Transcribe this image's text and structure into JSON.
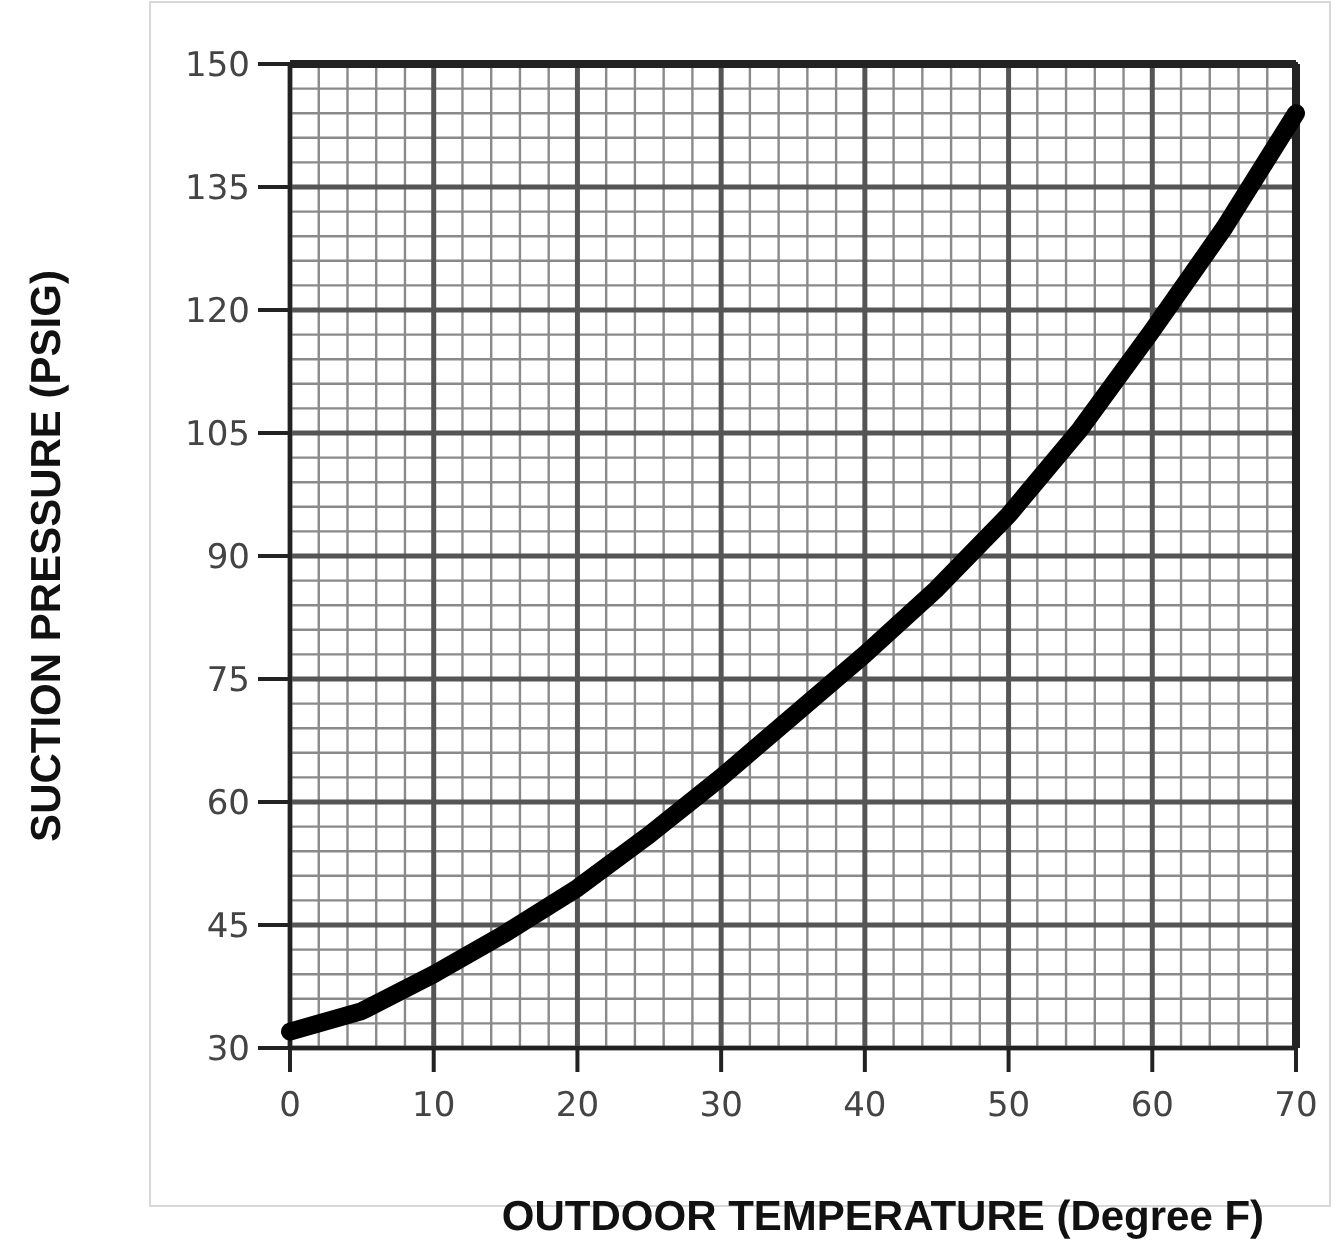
{
  "chart_data": {
    "type": "line",
    "xlabel": "OUTDOOR TEMPERATURE (Degree F)",
    "ylabel": "SUCTION PRESSURE (PSIG)",
    "x": [
      0,
      5,
      10,
      15,
      20,
      25,
      30,
      35,
      40,
      45,
      50,
      55,
      60,
      65,
      70
    ],
    "series": [
      {
        "color": "#000000",
        "values": [
          32,
          34.5,
          39,
          44,
          49.5,
          56,
          63,
          70.5,
          78,
          86,
          95,
          105.5,
          117.5,
          130,
          144
        ]
      }
    ],
    "xlim": [
      0,
      70
    ],
    "xticks": [
      0,
      10,
      20,
      30,
      40,
      50,
      60,
      70
    ],
    "ylim": [
      30,
      150
    ],
    "yticks": [
      30,
      45,
      60,
      75,
      90,
      105,
      120,
      135,
      150
    ],
    "grid": true,
    "marker": "none",
    "line_style": "solid"
  }
}
